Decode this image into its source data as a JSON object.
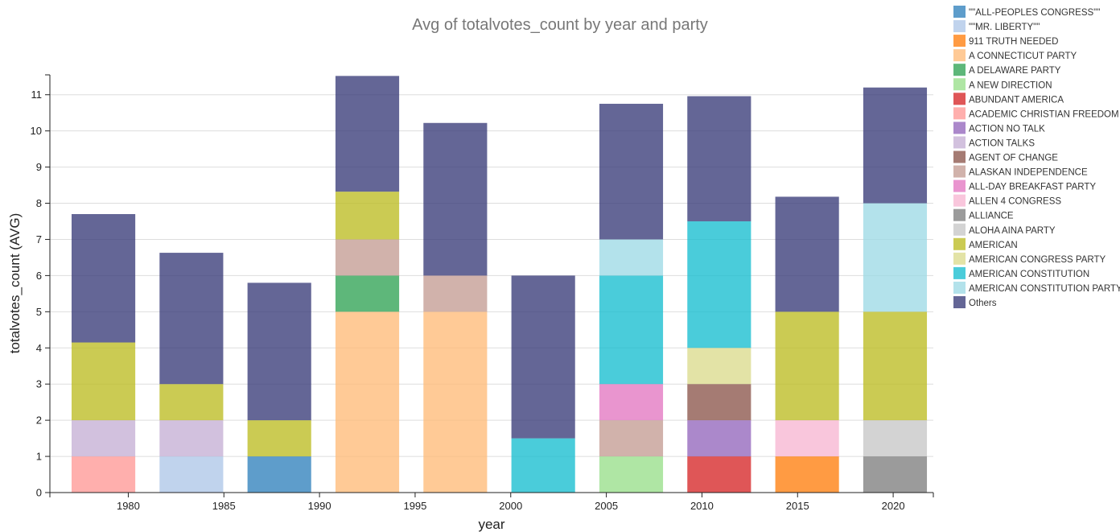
{
  "chart_data": {
    "type": "bar",
    "stacked": true,
    "title": "Avg of totalvotes_count by year and party",
    "xlabel": "year",
    "ylabel": "totalvotes_count (AVG)",
    "xlim": [
      1975.9,
      2022.1
    ],
    "ylim": [
      0,
      11.55
    ],
    "xticks": [
      1980,
      1985,
      1990,
      1995,
      2000,
      2005,
      2010,
      2015,
      2020
    ],
    "yticks": [
      0,
      1,
      2,
      3,
      4,
      5,
      6,
      7,
      8,
      9,
      10,
      11
    ],
    "grid": "horizontal",
    "legend_position": "right",
    "bar_centers": [
      1978.7,
      1983.3,
      1987.9,
      1992.5,
      1997.1,
      2001.7,
      2006.3,
      2010.9,
      2015.5,
      2020.1
    ],
    "bar_width": 3.33,
    "parties": [
      {
        "name": "\"\"ALL-PEOPLES CONGRESS\"\"",
        "color": "#3182bd"
      },
      {
        "name": "\"\"MR. LIBERTY\"\"",
        "color": "#aec7e8"
      },
      {
        "name": "911 TRUTH NEEDED",
        "color": "#ff7f0e"
      },
      {
        "name": "A CONNECTICUT PARTY",
        "color": "#ffbb78"
      },
      {
        "name": "A DELAWARE PARTY",
        "color": "#31a354"
      },
      {
        "name": "A NEW DIRECTION",
        "color": "#98df8a"
      },
      {
        "name": "ABUNDANT AMERICA",
        "color": "#d62728"
      },
      {
        "name": "ACADEMIC CHRISTIAN FREEDOM",
        "color": "#ff9896"
      },
      {
        "name": "ACTION NO TALK",
        "color": "#9467bd"
      },
      {
        "name": "ACTION TALKS",
        "color": "#c5b0d5"
      },
      {
        "name": "AGENT OF CHANGE",
        "color": "#8c564b"
      },
      {
        "name": "ALASKAN INDEPENDENCE",
        "color": "#c49c94"
      },
      {
        "name": "ALL-DAY BREAKFAST PARTY",
        "color": "#e377c2"
      },
      {
        "name": "ALLEN 4 CONGRESS",
        "color": "#f7b6d2"
      },
      {
        "name": "ALLIANCE",
        "color": "#7f7f7f"
      },
      {
        "name": "ALOHA AINA PARTY",
        "color": "#c7c7c7"
      },
      {
        "name": "AMERICAN",
        "color": "#bcbd22"
      },
      {
        "name": "AMERICAN CONGRESS PARTY",
        "color": "#dbdb8d"
      },
      {
        "name": "AMERICAN CONSTITUTION",
        "color": "#17becf"
      },
      {
        "name": "AMERICAN CONSTITUTION PARTY",
        "color": "#9edae5"
      },
      {
        "name": "Others",
        "color": "#393b79"
      }
    ],
    "bars": [
      {
        "segments": [
          {
            "party": "ACADEMIC CHRISTIAN FREEDOM",
            "value": 1
          },
          {
            "party": "ACTION TALKS",
            "value": 1
          },
          {
            "party": "AMERICAN",
            "value": 2.15
          },
          {
            "party": "Others",
            "value": 3.55
          }
        ]
      },
      {
        "segments": [
          {
            "party": "\"\"MR. LIBERTY\"\"",
            "value": 1
          },
          {
            "party": "ACTION TALKS",
            "value": 1
          },
          {
            "party": "AMERICAN",
            "value": 1
          },
          {
            "party": "Others",
            "value": 3.63
          }
        ]
      },
      {
        "segments": [
          {
            "party": "\"\"ALL-PEOPLES CONGRESS\"\"",
            "value": 1
          },
          {
            "party": "AMERICAN",
            "value": 1
          },
          {
            "party": "Others",
            "value": 3.8
          }
        ]
      },
      {
        "segments": [
          {
            "party": "A CONNECTICUT PARTY",
            "value": 5
          },
          {
            "party": "A DELAWARE PARTY",
            "value": 1
          },
          {
            "party": "ALASKAN INDEPENDENCE",
            "value": 1
          },
          {
            "party": "AMERICAN",
            "value": 1.32
          },
          {
            "party": "Others",
            "value": 3.2
          }
        ]
      },
      {
        "segments": [
          {
            "party": "A CONNECTICUT PARTY",
            "value": 5
          },
          {
            "party": "ALASKAN INDEPENDENCE",
            "value": 1
          },
          {
            "party": "Others",
            "value": 4.22
          }
        ]
      },
      {
        "segments": [
          {
            "party": "AMERICAN CONSTITUTION",
            "value": 1.5
          },
          {
            "party": "Others",
            "value": 4.5
          }
        ]
      },
      {
        "segments": [
          {
            "party": "A NEW DIRECTION",
            "value": 1
          },
          {
            "party": "ALASKAN INDEPENDENCE",
            "value": 1
          },
          {
            "party": "ALL-DAY BREAKFAST PARTY",
            "value": 1
          },
          {
            "party": "AMERICAN CONSTITUTION",
            "value": 3
          },
          {
            "party": "AMERICAN CONSTITUTION PARTY",
            "value": 1
          },
          {
            "party": "Others",
            "value": 3.75
          }
        ]
      },
      {
        "segments": [
          {
            "party": "ABUNDANT AMERICA",
            "value": 1
          },
          {
            "party": "ACTION NO TALK",
            "value": 1
          },
          {
            "party": "AGENT OF CHANGE",
            "value": 1
          },
          {
            "party": "AMERICAN CONGRESS PARTY",
            "value": 1
          },
          {
            "party": "AMERICAN CONSTITUTION",
            "value": 3.5
          },
          {
            "party": "Others",
            "value": 3.46
          }
        ]
      },
      {
        "segments": [
          {
            "party": "911 TRUTH NEEDED",
            "value": 1
          },
          {
            "party": "ALLEN 4 CONGRESS",
            "value": 1
          },
          {
            "party": "AMERICAN",
            "value": 3
          },
          {
            "party": "Others",
            "value": 3.18
          }
        ]
      },
      {
        "segments": [
          {
            "party": "ALLIANCE",
            "value": 1
          },
          {
            "party": "ALOHA AINA PARTY",
            "value": 1
          },
          {
            "party": "AMERICAN",
            "value": 3
          },
          {
            "party": "AMERICAN CONSTITUTION PARTY",
            "value": 3
          },
          {
            "party": "Others",
            "value": 3.2
          }
        ]
      }
    ]
  }
}
